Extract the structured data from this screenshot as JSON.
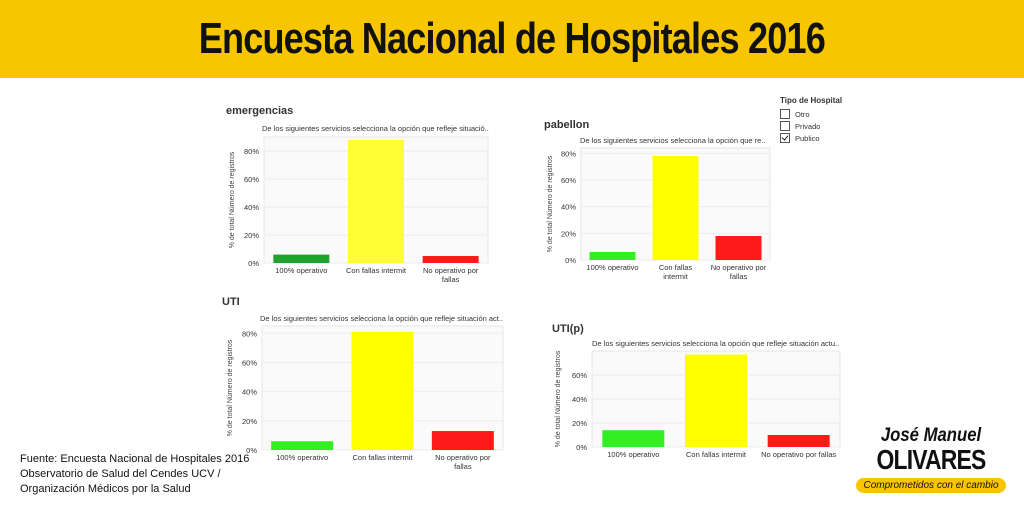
{
  "banner": {
    "title": "Encuesta Nacional de Hospitales 2016"
  },
  "legend": {
    "title": "Tipo de Hospital",
    "items": [
      {
        "label": "Otro",
        "checked": false
      },
      {
        "label": "Privado",
        "checked": false
      },
      {
        "label": "Publico",
        "checked": true
      }
    ]
  },
  "source": {
    "lines": [
      "Fuente: Encuesta Nacional de Hospitales 2016",
      "Observatorio de Salud del Cendes UCV /",
      "Organización Médicos por la Salud"
    ]
  },
  "brand": {
    "first": "José Manuel",
    "last": "OLIVARES",
    "slogan": "Comprometidos con el cambio"
  },
  "chart_data": [
    {
      "type": "bar",
      "title": "emergencias",
      "subtitle": "De los siguientes servicios selecciona la opción que refleje situació..",
      "ylabel": "% de total Número de registros",
      "ylim": [
        0,
        90
      ],
      "yticks": [
        0,
        20,
        40,
        60,
        80
      ],
      "ytick_labels": [
        "0%",
        "20%",
        "40%",
        "60%",
        "80%"
      ],
      "categories": [
        "100% operativo",
        "Con fallas intermit",
        "No operativo por fallas"
      ],
      "category_labels": [
        [
          "100% operativo"
        ],
        [
          "Con fallas intermit"
        ],
        [
          "No operativo por",
          "fallas"
        ]
      ],
      "values": [
        6,
        88,
        5
      ],
      "colors": [
        "#1fa22e",
        "#ffff33",
        "#ff1a1a"
      ]
    },
    {
      "type": "bar",
      "title": "pabellon",
      "subtitle": "De los siguientes servicios selecciona la opción que re..",
      "ylabel": "% de total Número de registros",
      "ylim": [
        0,
        84
      ],
      "yticks": [
        0,
        20,
        40,
        60,
        80
      ],
      "ytick_labels": [
        "0%",
        "20%",
        "40%",
        "60%",
        "80%"
      ],
      "categories": [
        "100% operativo",
        "Con fallas intermit",
        "No operativo por fallas"
      ],
      "category_labels": [
        [
          "100% operativo"
        ],
        [
          "Con fallas",
          "intermit"
        ],
        [
          "No operativo por",
          "fallas"
        ]
      ],
      "values": [
        6,
        78,
        18
      ],
      "colors": [
        "#33ee22",
        "#ffff00",
        "#ff1a1a"
      ]
    },
    {
      "type": "bar",
      "title": "UTI",
      "subtitle": "De los siguientes servicios selecciona la opción que refleje situación act..",
      "ylabel": "% de total Número de registros",
      "ylim": [
        0,
        85
      ],
      "yticks": [
        0,
        20,
        40,
        60,
        80
      ],
      "ytick_labels": [
        "0%",
        "20%",
        "40%",
        "60%",
        "80%"
      ],
      "categories": [
        "100% operativo",
        "Con fallas intermit",
        "No operativo por fallas"
      ],
      "category_labels": [
        [
          "100% operativo"
        ],
        [
          "Con fallas intermit"
        ],
        [
          "No operativo por",
          "fallas"
        ]
      ],
      "values": [
        6,
        81,
        13
      ],
      "colors": [
        "#33ee22",
        "#ffff00",
        "#ff1a1a"
      ]
    },
    {
      "type": "bar",
      "title": "UTI(p)",
      "subtitle": "De los siguientes servicios selecciona la opción que refleje situación actu..",
      "ylabel": "% de total Número de registros",
      "ylim": [
        0,
        80
      ],
      "yticks": [
        0,
        20,
        40,
        60
      ],
      "ytick_labels": [
        "0%",
        "20%",
        "40%",
        "60%"
      ],
      "categories": [
        "100% operativo",
        "Con fallas intermit",
        "No operativo por fallas"
      ],
      "category_labels": [
        [
          "100% operativo"
        ],
        [
          "Con fallas intermit"
        ],
        [
          "No operativo por fallas"
        ]
      ],
      "values": [
        14,
        77,
        10
      ],
      "colors": [
        "#33ee22",
        "#ffff00",
        "#ff1a1a"
      ]
    }
  ]
}
